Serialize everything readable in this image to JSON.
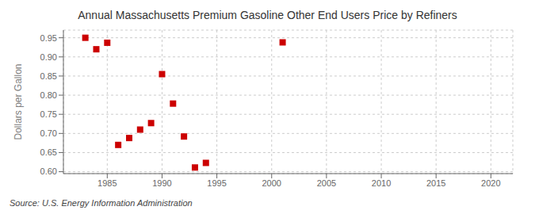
{
  "chart_data": {
    "type": "scatter",
    "title": "Annual Massachusetts Premium Gasoline Other End Users Price by Refiners",
    "y_label": "Dollars per Gallon",
    "annotations": [
      "Source: U.S. Energy Information Administration"
    ],
    "x": [
      1983,
      1984,
      1985,
      1986,
      1987,
      1988,
      1989,
      1990,
      1991,
      1992,
      1993,
      1994,
      2001
    ],
    "values": [
      0.95,
      0.92,
      0.937,
      0.67,
      0.688,
      0.71,
      0.727,
      0.855,
      0.778,
      0.692,
      0.611,
      0.623,
      0.938
    ],
    "color": "#cc0000",
    "marker": "square",
    "xlim": [
      1981,
      2022
    ],
    "ylim": [
      0.595,
      0.97
    ],
    "xticks": [
      1985,
      1990,
      1995,
      2000,
      2005,
      2010,
      2015,
      2020
    ],
    "yticks": [
      {
        "value": 0.6,
        "label": "0.60"
      },
      0.65,
      {
        "value": 0.7,
        "label": "0.70"
      },
      0.75,
      {
        "value": 0.8,
        "label": "0.80"
      },
      0.85,
      {
        "value": 0.9,
        "label": "0.90"
      },
      0.95
    ],
    "grid": true
  }
}
